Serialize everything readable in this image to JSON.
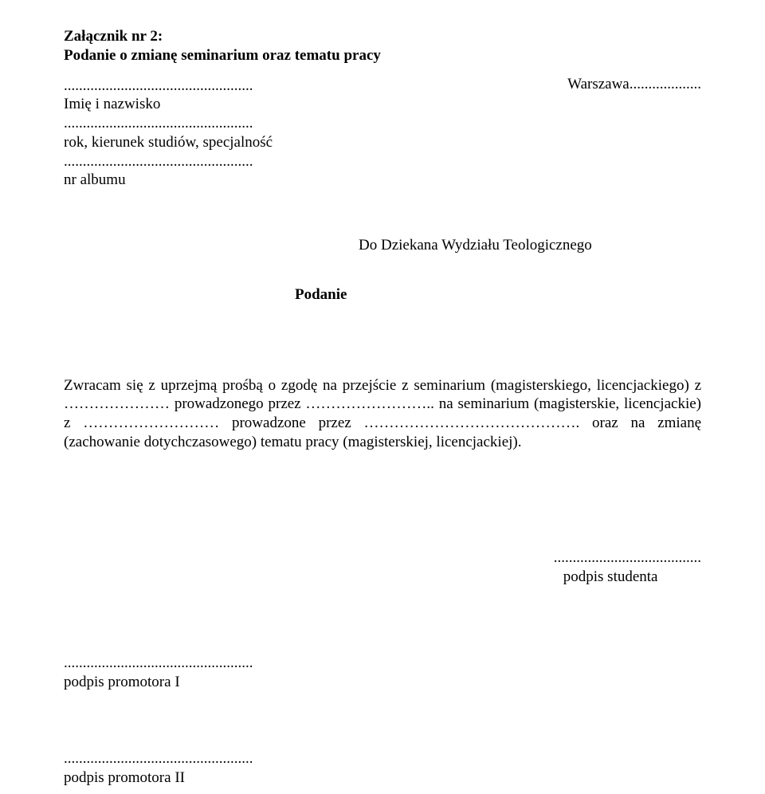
{
  "heading": {
    "line1": "Załącznik nr 2:",
    "line2": "Podanie o zmianę seminarium oraz tematu pracy"
  },
  "meta": {
    "line1_dots": "..................................................",
    "line1_label": "Imię i nazwisko",
    "line2_dots": "..................................................",
    "line2_label": "rok, kierunek studiów, specjalność",
    "line3_dots": "..................................................",
    "line3_label": "nr albumu"
  },
  "city_date": "Warszawa...................",
  "recipient": "Do Dziekana Wydziału Teologicznego",
  "form_title": "Podanie",
  "body_text": "Zwracam się z uprzejmą prośbą o zgodę na przejście z seminarium (magisterskiego, licencjackiego) z ………………… prowadzonego przez …………………….. na seminarium (magisterskie, licencjackie) z ……………………… prowadzone przez ……………………………………. oraz na zmianę (zachowanie dotychczasowego) tematu pracy (magisterskiej, licencjackiej).",
  "signatures": {
    "student_dots": ".......................................",
    "student_label": "podpis studenta",
    "promotor1_dots": "..................................................",
    "promotor1_label": "podpis promotora I",
    "promotor2_dots": "..................................................",
    "promotor2_label": "podpis promotora II"
  }
}
